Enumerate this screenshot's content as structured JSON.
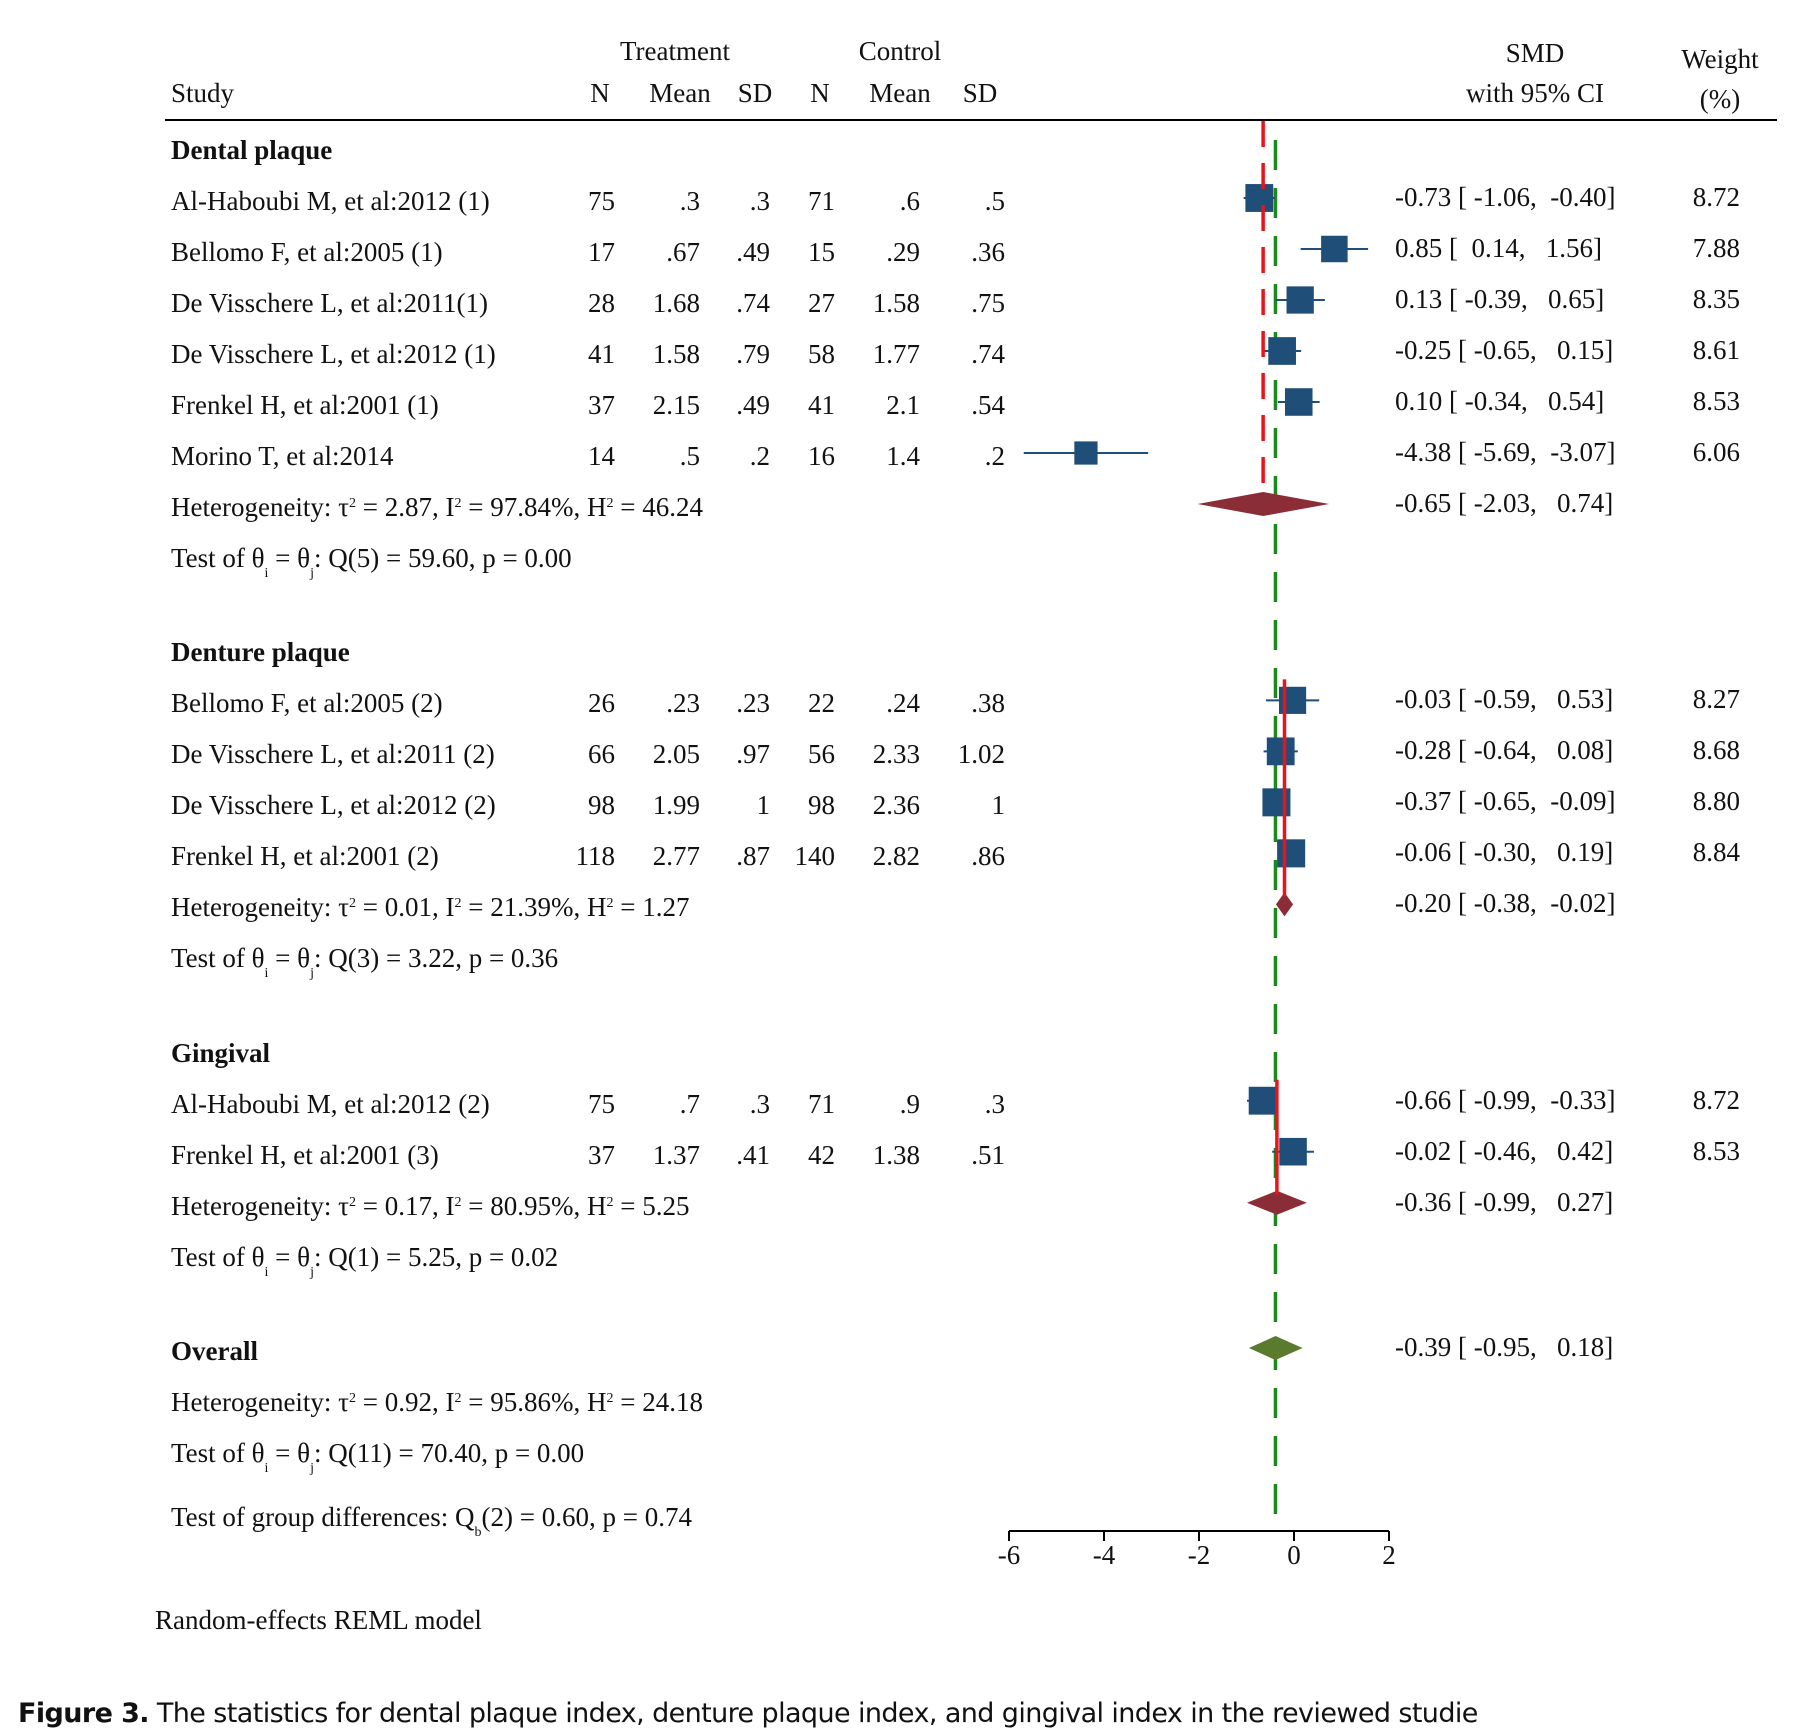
{
  "header": {
    "study": "Study",
    "treatment": "Treatment",
    "control": "Control",
    "n": "N",
    "mean": "Mean",
    "sd": "SD",
    "smd_line1": "SMD",
    "smd_line2": "with 95% CI",
    "weight_line1": "Weight",
    "weight_line2": "(%)"
  },
  "footer": {
    "model": "Random-effects REML model",
    "caption_bold": "Figure 3.",
    "caption_text": " The statistics for dental plaque index, denture plaque index, and gingival index in the reviewed studie"
  },
  "colors": {
    "study_marker": "#1f4e79",
    "subgroup_diamond": "#8b2d36",
    "overall_diamond": "#5a7a2e",
    "subgroup_line": "#e8141c",
    "overall_line": "#1a8a1a"
  },
  "chart_data": {
    "type": "forest",
    "measure": "SMD",
    "xlim": [
      -6,
      2
    ],
    "xticks": [
      -6,
      -4,
      -2,
      0,
      2
    ],
    "overall_line_value": -0.39,
    "groups": [
      {
        "name": "Dental plaque",
        "studies": [
          {
            "study": "Al-Haboubi M, et al:2012 (1)",
            "t_n": "75",
            "t_mean": ".3",
            "t_sd": ".3",
            "c_n": "71",
            "c_mean": ".6",
            "c_sd": ".5",
            "smd": -0.73,
            "lo": -1.06,
            "hi": -0.4,
            "ci_text": "-0.73 [ -1.06,  -0.40]",
            "weight": "8.72"
          },
          {
            "study": "Bellomo F, et al:2005 (1)",
            "t_n": "17",
            "t_mean": ".67",
            "t_sd": ".49",
            "c_n": "15",
            "c_mean": ".29",
            "c_sd": ".36",
            "smd": 0.85,
            "lo": 0.14,
            "hi": 1.56,
            "ci_text": "0.85 [  0.14,   1.56]",
            "weight": "7.88"
          },
          {
            "study": "De Visschere L, et al:2011(1)",
            "t_n": "28",
            "t_mean": "1.68",
            "t_sd": ".74",
            "c_n": "27",
            "c_mean": "1.58",
            "c_sd": ".75",
            "smd": 0.13,
            "lo": -0.39,
            "hi": 0.65,
            "ci_text": "0.13 [ -0.39,   0.65]",
            "weight": "8.35"
          },
          {
            "study": "De Visschere L, et al:2012 (1)",
            "t_n": "41",
            "t_mean": "1.58",
            "t_sd": ".79",
            "c_n": "58",
            "c_mean": "1.77",
            "c_sd": ".74",
            "smd": -0.25,
            "lo": -0.65,
            "hi": 0.15,
            "ci_text": "-0.25 [ -0.65,   0.15]",
            "weight": "8.61"
          },
          {
            "study": "Frenkel H, et al:2001 (1)",
            "t_n": "37",
            "t_mean": "2.15",
            "t_sd": ".49",
            "c_n": "41",
            "c_mean": "2.1",
            "c_sd": ".54",
            "smd": 0.1,
            "lo": -0.34,
            "hi": 0.54,
            "ci_text": "0.10 [ -0.34,   0.54]",
            "weight": "8.53"
          },
          {
            "study": "Morino T, et al:2014",
            "t_n": "14",
            "t_mean": ".5",
            "t_sd": ".2",
            "c_n": "16",
            "c_mean": "1.4",
            "c_sd": ".2",
            "smd": -4.38,
            "lo": -5.69,
            "hi": -3.07,
            "ci_text": "-4.38 [ -5.69,  -3.07]",
            "weight": "6.06"
          }
        ],
        "pooled": {
          "smd": -0.65,
          "lo": -2.03,
          "hi": 0.74,
          "ci_text": "-0.65 [ -2.03,   0.74]"
        },
        "heterogeneity": {
          "tau2": "2.87",
          "i2": "97.84%",
          "h2": "46.24"
        },
        "q_test": {
          "df": "5",
          "q": "59.60",
          "p": "0.00"
        }
      },
      {
        "name": "Denture plaque",
        "studies": [
          {
            "study": "Bellomo F, et al:2005 (2)",
            "t_n": "26",
            "t_mean": ".23",
            "t_sd": ".23",
            "c_n": "22",
            "c_mean": ".24",
            "c_sd": ".38",
            "smd": -0.03,
            "lo": -0.59,
            "hi": 0.53,
            "ci_text": "-0.03 [ -0.59,   0.53]",
            "weight": "8.27"
          },
          {
            "study": "De Visschere L, et al:2011 (2)",
            "t_n": "66",
            "t_mean": "2.05",
            "t_sd": ".97",
            "c_n": "56",
            "c_mean": "2.33",
            "c_sd": "1.02",
            "smd": -0.28,
            "lo": -0.64,
            "hi": 0.08,
            "ci_text": "-0.28 [ -0.64,   0.08]",
            "weight": "8.68"
          },
          {
            "study": "De Visschere L, et al:2012 (2)",
            "t_n": "98",
            "t_mean": "1.99",
            "t_sd": "1",
            "c_n": "98",
            "c_mean": "2.36",
            "c_sd": "1",
            "smd": -0.37,
            "lo": -0.65,
            "hi": -0.09,
            "ci_text": "-0.37 [ -0.65,  -0.09]",
            "weight": "8.80"
          },
          {
            "study": "Frenkel H, et al:2001 (2)",
            "t_n": "118",
            "t_mean": "2.77",
            "t_sd": ".87",
            "c_n": "140",
            "c_mean": "2.82",
            "c_sd": ".86",
            "smd": -0.06,
            "lo": -0.3,
            "hi": 0.19,
            "ci_text": "-0.06 [ -0.30,   0.19]",
            "weight": "8.84"
          }
        ],
        "pooled": {
          "smd": -0.2,
          "lo": -0.38,
          "hi": -0.02,
          "ci_text": "-0.20 [ -0.38,  -0.02]"
        },
        "heterogeneity": {
          "tau2": "0.01",
          "i2": "21.39%",
          "h2": "1.27"
        },
        "q_test": {
          "df": "3",
          "q": "3.22",
          "p": "0.36"
        }
      },
      {
        "name": "Gingival",
        "studies": [
          {
            "study": "Al-Haboubi M, et al:2012 (2)",
            "t_n": "75",
            "t_mean": ".7",
            "t_sd": ".3",
            "c_n": "71",
            "c_mean": ".9",
            "c_sd": ".3",
            "smd": -0.66,
            "lo": -0.99,
            "hi": -0.33,
            "ci_text": "-0.66 [ -0.99,  -0.33]",
            "weight": "8.72"
          },
          {
            "study": "Frenkel H, et al:2001 (3)",
            "t_n": "37",
            "t_mean": "1.37",
            "t_sd": ".41",
            "c_n": "42",
            "c_mean": "1.38",
            "c_sd": ".51",
            "smd": -0.02,
            "lo": -0.46,
            "hi": 0.42,
            "ci_text": "-0.02 [ -0.46,   0.42]",
            "weight": "8.53"
          }
        ],
        "pooled": {
          "smd": -0.36,
          "lo": -0.99,
          "hi": 0.27,
          "ci_text": "-0.36 [ -0.99,   0.27]"
        },
        "heterogeneity": {
          "tau2": "0.17",
          "i2": "80.95%",
          "h2": "5.25"
        },
        "q_test": {
          "df": "1",
          "q": "5.25",
          "p": "0.02"
        }
      }
    ],
    "overall": {
      "name": "Overall",
      "smd": -0.39,
      "lo": -0.95,
      "hi": 0.18,
      "ci_text": "-0.39 [ -0.95,   0.18]",
      "heterogeneity": {
        "tau2": "0.92",
        "i2": "95.86%",
        "h2": "24.18"
      },
      "q_test": {
        "df": "11",
        "q": "70.40",
        "p": "0.00"
      },
      "group_diff": {
        "df": "2",
        "q": "0.60",
        "p": "0.74"
      }
    }
  }
}
